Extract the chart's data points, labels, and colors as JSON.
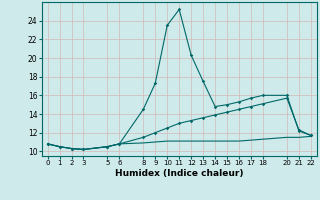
{
  "title": "",
  "xlabel": "Humidex (Indice chaleur)",
  "bg_color": "#ceeaea",
  "line_color": "#006868",
  "grid_color": "#b8d4d4",
  "pink_grid": "#d4b8b8",
  "xlim": [
    -0.5,
    22.5
  ],
  "ylim": [
    9.5,
    26.0
  ],
  "xticks": [
    0,
    1,
    2,
    3,
    5,
    6,
    8,
    9,
    10,
    11,
    12,
    13,
    14,
    15,
    16,
    17,
    18,
    20,
    21,
    22
  ],
  "yticks": [
    10,
    12,
    14,
    16,
    18,
    20,
    22,
    24
  ],
  "series1_x": [
    0,
    1,
    2,
    3,
    5,
    6,
    8,
    9,
    10,
    11,
    12,
    13,
    14,
    15,
    16,
    17,
    18,
    20,
    21,
    22
  ],
  "series1_y": [
    10.8,
    10.5,
    10.3,
    10.2,
    10.5,
    10.8,
    14.5,
    17.3,
    23.5,
    25.2,
    20.3,
    17.5,
    14.8,
    15.0,
    15.3,
    15.7,
    16.0,
    16.0,
    12.2,
    11.7
  ],
  "series2_x": [
    0,
    1,
    2,
    3,
    5,
    6,
    8,
    9,
    10,
    11,
    12,
    13,
    14,
    15,
    16,
    17,
    18,
    20,
    21,
    22
  ],
  "series2_y": [
    10.8,
    10.5,
    10.3,
    10.2,
    10.5,
    10.8,
    11.5,
    12.0,
    12.5,
    13.0,
    13.3,
    13.6,
    13.9,
    14.2,
    14.5,
    14.8,
    15.1,
    15.7,
    12.3,
    11.7
  ],
  "series3_x": [
    0,
    1,
    2,
    3,
    5,
    6,
    8,
    9,
    10,
    11,
    12,
    13,
    14,
    15,
    16,
    17,
    18,
    20,
    21,
    22
  ],
  "series3_y": [
    10.8,
    10.5,
    10.3,
    10.2,
    10.5,
    10.8,
    10.9,
    11.0,
    11.1,
    11.1,
    11.1,
    11.1,
    11.1,
    11.1,
    11.1,
    11.2,
    11.3,
    11.5,
    11.5,
    11.6
  ]
}
